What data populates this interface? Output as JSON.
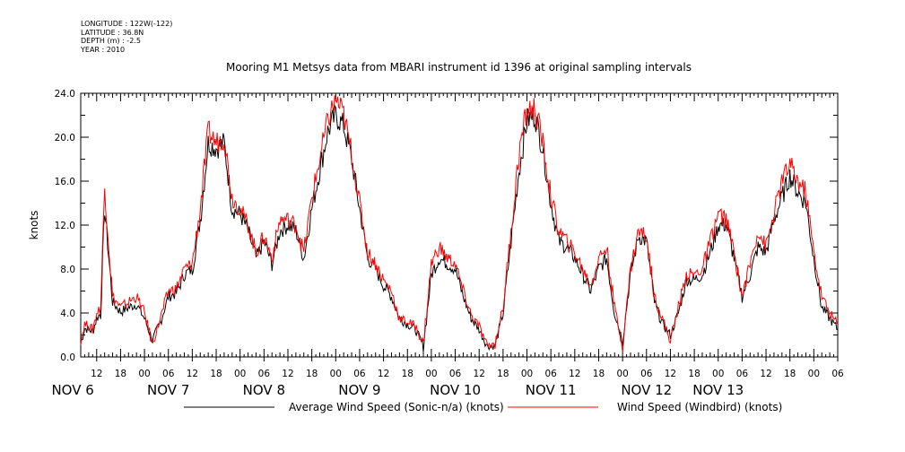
{
  "header": {
    "meta_lines": [
      "LONGITUDE : 122W(-122)",
      "LATITUDE : 36.8N",
      "DEPTH (m) : -2.5",
      "YEAR : 2010"
    ],
    "title": "Mooring M1 Metsys data from MBARI instrument id 1396 at original sampling intervals"
  },
  "chart_data": {
    "type": "line",
    "title": "Mooring M1 Metsys data from MBARI instrument id 1396 at original sampling intervals",
    "xlabel": "",
    "ylabel": "knots",
    "ylim": [
      0,
      24
    ],
    "y_ticks": [
      "0.0",
      "4.0",
      "8.0",
      "12.0",
      "16.0",
      "20.0",
      "24.0"
    ],
    "x_hour_tick_labels": [
      "12",
      "18",
      "00",
      "06",
      "12",
      "18",
      "00",
      "06",
      "12",
      "18",
      "00",
      "06",
      "12",
      "18",
      "00",
      "06",
      "12",
      "18",
      "00",
      "06",
      "12",
      "18",
      "00",
      "06",
      "12",
      "18",
      "00",
      "06",
      "12",
      "18",
      "00",
      "06"
    ],
    "x_day_labels": [
      "NOV 6",
      "NOV 7",
      "NOV 8",
      "NOV 9",
      "NOV 10",
      "NOV 11",
      "NOV 12",
      "NOV 13"
    ],
    "x_range_hours_from_nov6_00": [
      8,
      198
    ],
    "grid": false,
    "legend_position": "bottom",
    "series": [
      {
        "name": "Average Wind Speed (Sonic-n/a) (knots)",
        "color": "#000000",
        "x_hours_from_nov6_00": [
          8,
          9,
          10,
          11,
          12,
          13,
          14,
          16,
          18,
          20,
          22,
          24,
          26,
          28,
          30,
          32,
          34,
          36,
          38,
          40,
          42,
          44,
          46,
          48,
          50,
          52,
          54,
          56,
          58,
          60,
          62,
          64,
          66,
          68,
          70,
          72,
          74,
          76,
          78,
          80,
          82,
          84,
          86,
          88,
          90,
          92,
          94,
          96,
          98,
          100,
          102,
          104,
          106,
          108,
          110,
          112,
          114,
          116,
          118,
          120,
          122,
          124,
          126,
          128,
          130,
          132,
          134,
          136,
          138,
          140,
          142,
          144,
          146,
          148,
          150,
          152,
          154,
          156,
          158,
          160,
          162,
          164,
          166,
          168,
          170,
          172,
          174,
          176,
          178,
          180,
          182,
          184,
          186,
          188,
          190,
          192,
          194,
          196,
          198
        ],
        "values": [
          1.2,
          2.6,
          2.5,
          2.3,
          3.5,
          4.0,
          13.5,
          5.0,
          4.1,
          4.5,
          4.8,
          3.5,
          1.5,
          3.2,
          5.5,
          5.8,
          7.5,
          8.0,
          12.5,
          19.5,
          19.0,
          19.5,
          13.5,
          13.0,
          11.5,
          9.0,
          10.5,
          8.5,
          11.5,
          12.0,
          11.5,
          9.0,
          13.5,
          17.0,
          20.5,
          22.0,
          21.0,
          18.0,
          13.5,
          9.0,
          8.0,
          6.5,
          5.5,
          3.5,
          3.0,
          2.5,
          1.0,
          7.5,
          9.0,
          8.5,
          8.0,
          5.5,
          3.5,
          2.5,
          1.0,
          1.0,
          4.0,
          10.5,
          17.0,
          21.5,
          22.0,
          19.0,
          14.0,
          10.5,
          10.0,
          9.0,
          7.5,
          6.0,
          8.0,
          9.0,
          4.0,
          1.5,
          7.5,
          11.0,
          10.5,
          5.0,
          3.0,
          2.0,
          4.0,
          7.0,
          7.0,
          7.5,
          9.5,
          12.0,
          12.0,
          9.0,
          5.5,
          7.5,
          10.0,
          9.5,
          12.5,
          14.5,
          16.5,
          15.0,
          14.0,
          9.0,
          4.5,
          3.5,
          2.5
        ]
      },
      {
        "name": "Wind Speed (Windbird) (knots)",
        "color": "#ff0000",
        "x_hours_from_nov6_00": [
          8,
          9,
          10,
          11,
          12,
          13,
          14,
          16,
          18,
          20,
          22,
          24,
          26,
          28,
          30,
          32,
          34,
          36,
          38,
          40,
          42,
          44,
          46,
          48,
          50,
          52,
          54,
          56,
          58,
          60,
          62,
          64,
          66,
          68,
          70,
          72,
          74,
          76,
          78,
          80,
          82,
          84,
          86,
          88,
          90,
          92,
          94,
          96,
          98,
          100,
          102,
          104,
          106,
          108,
          110,
          112,
          114,
          116,
          118,
          120,
          122,
          124,
          126,
          128,
          130,
          132,
          134,
          136,
          138,
          140,
          142,
          144,
          146,
          148,
          150,
          152,
          154,
          156,
          158,
          160,
          162,
          164,
          166,
          168,
          170,
          172,
          174,
          176,
          178,
          180,
          182,
          184,
          186,
          188,
          190,
          192,
          194,
          196,
          198
        ],
        "values": [
          1.5,
          3.0,
          2.8,
          2.5,
          4.0,
          4.5,
          15.5,
          5.5,
          4.5,
          5.0,
          5.5,
          4.0,
          1.2,
          3.5,
          6.0,
          6.2,
          8.0,
          8.5,
          13.5,
          20.5,
          19.5,
          20.0,
          14.5,
          13.5,
          12.0,
          9.5,
          11.0,
          9.0,
          12.5,
          12.5,
          12.0,
          9.5,
          14.5,
          18.0,
          21.5,
          23.5,
          22.0,
          18.5,
          14.0,
          9.5,
          8.5,
          7.0,
          6.0,
          3.5,
          3.2,
          2.8,
          1.2,
          8.5,
          10.0,
          9.0,
          8.5,
          6.0,
          3.8,
          2.8,
          1.0,
          1.2,
          4.5,
          11.5,
          18.5,
          22.5,
          22.5,
          19.5,
          14.5,
          11.5,
          10.5,
          9.5,
          8.0,
          6.5,
          9.0,
          10.0,
          4.5,
          1.0,
          8.0,
          11.5,
          11.0,
          5.5,
          3.5,
          1.5,
          4.5,
          7.5,
          7.5,
          8.0,
          10.5,
          13.0,
          12.5,
          9.5,
          5.5,
          8.5,
          11.5,
          10.0,
          13.0,
          16.0,
          17.5,
          16.0,
          15.0,
          9.5,
          5.5,
          4.0,
          3.0
        ]
      }
    ]
  }
}
